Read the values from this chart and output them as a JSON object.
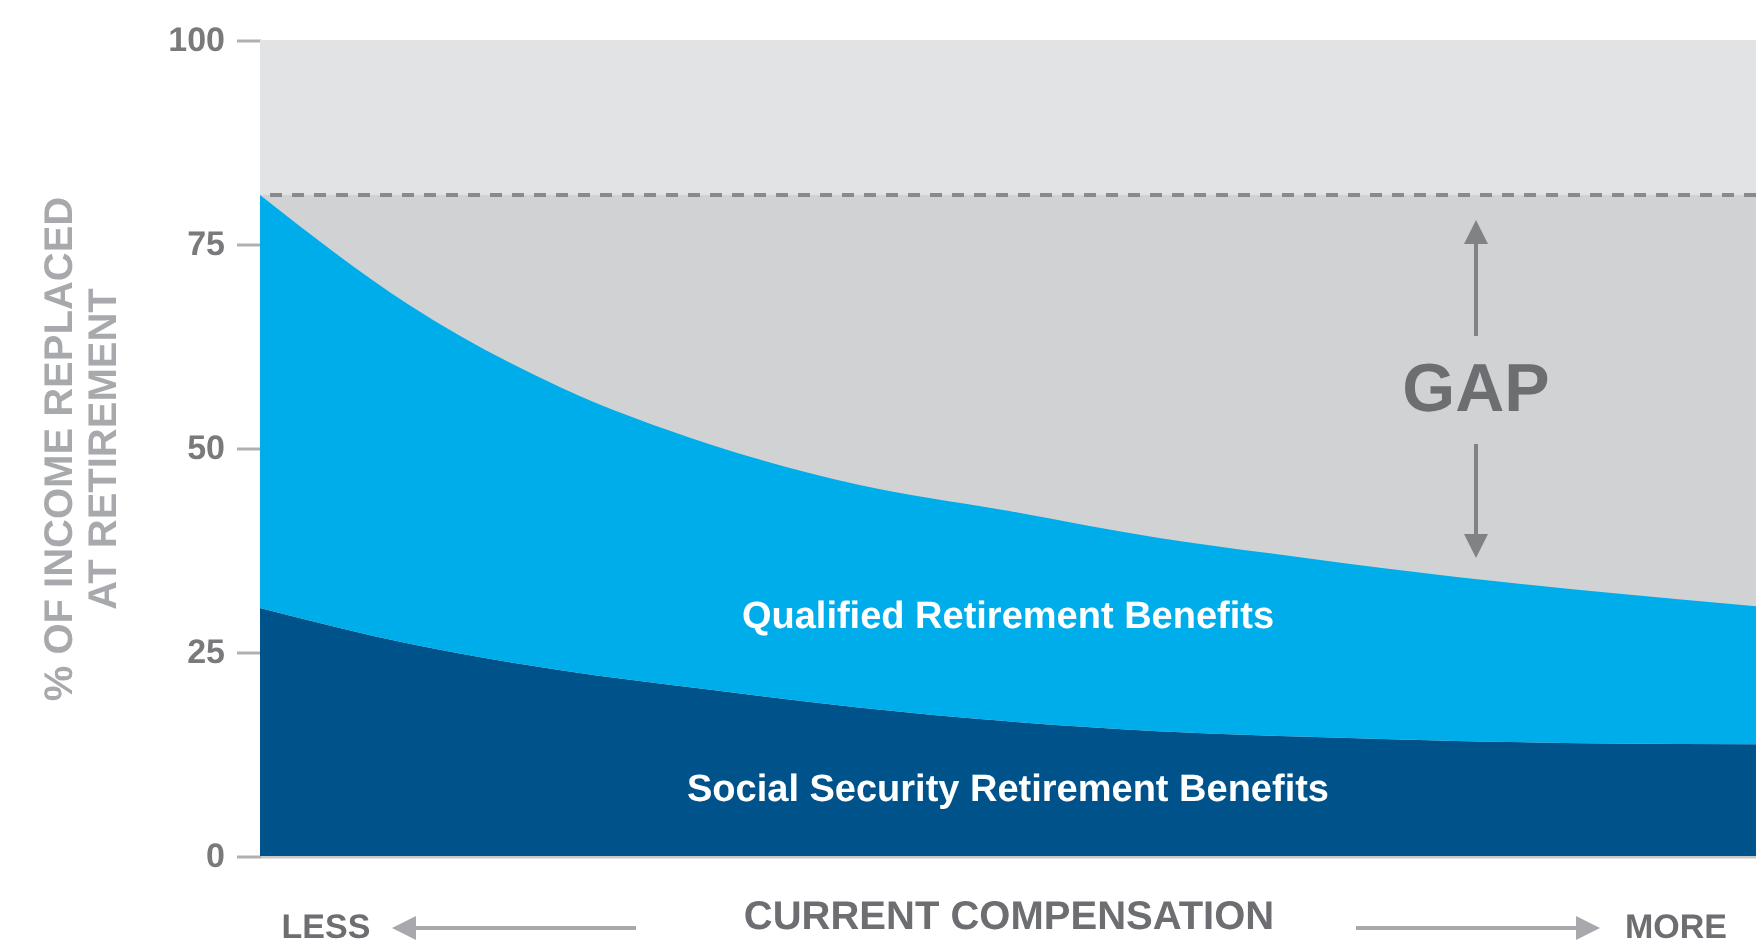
{
  "chart_data": {
    "type": "area",
    "stacked": true,
    "xlabel": "CURRENT COMPENSATION",
    "ylabel": "% OF INCOME REPLACED AT RETIREMENT",
    "categories": [
      null,
      null,
      null,
      null,
      null,
      null,
      null,
      null,
      null,
      null,
      null
    ],
    "series": [
      {
        "name": "Social Security Retirement Benefits",
        "color": "#00538a",
        "values": [
          30.4,
          26,
          22.8,
          20.4,
          18.2,
          16.5,
          15.3,
          14.6,
          14.1,
          13.8,
          13.7
        ]
      },
      {
        "name": "Qualified Retirement Benefits",
        "color": "#00adeb",
        "values": [
          50.6,
          41.5,
          34.7,
          30.1,
          27.3,
          25.8,
          23.7,
          21.9,
          20.1,
          18.5,
          16.9
        ]
      }
    ],
    "ylim": [
      0,
      100
    ],
    "yticks": [
      0,
      25,
      50,
      75,
      100
    ],
    "tick_labels": "y",
    "ref_lines": [
      {
        "axis": "y",
        "value": 81,
        "color": "#8a8a8c",
        "line_style": "dashed"
      }
    ],
    "bands": [
      {
        "axis": "y",
        "from": 81,
        "to": 100,
        "color": "#e2e3e5"
      },
      {
        "axis": "y",
        "from": 0,
        "to": 81,
        "color": "#d1d2d4"
      }
    ],
    "annotations": [
      "GAP",
      "LESS",
      "MORE"
    ]
  }
}
